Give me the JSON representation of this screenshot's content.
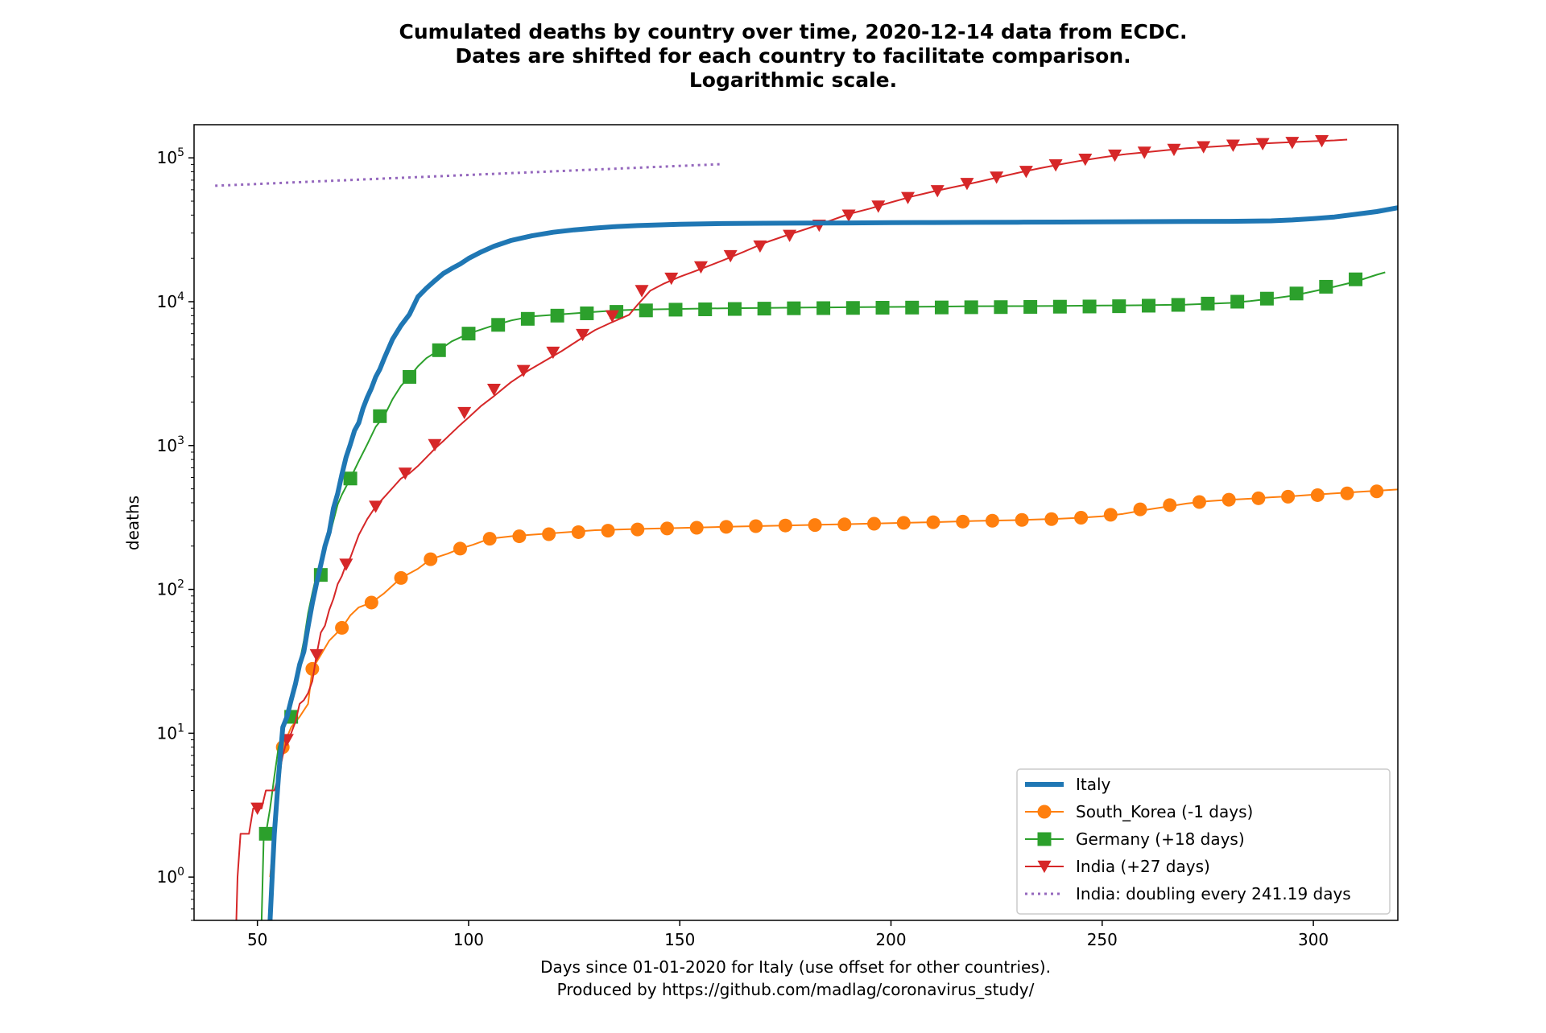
{
  "chart_data": {
    "type": "line",
    "title": [
      "Cumulated deaths by country over time, 2020-12-14 data from ECDC.",
      "Dates are shifted for each country to facilitate comparison.",
      "Logarithmic scale."
    ],
    "xlabel": [
      "Days since 01-01-2020 for Italy (use offset for other countries).",
      "Produced by https://github.com/madlag/coronavirus_study/"
    ],
    "ylabel": "deaths",
    "yscale": "log",
    "xlim": [
      35,
      320
    ],
    "ylim": [
      0.5,
      170000
    ],
    "xticks": [
      {
        "value": 50,
        "label": "50"
      },
      {
        "value": 100,
        "label": "100"
      },
      {
        "value": 150,
        "label": "150"
      },
      {
        "value": 200,
        "label": "200"
      },
      {
        "value": 250,
        "label": "250"
      },
      {
        "value": 300,
        "label": "300"
      }
    ],
    "yticks": [
      {
        "value": 1,
        "base": "10",
        "exp": "0"
      },
      {
        "value": 10,
        "base": "10",
        "exp": "1"
      },
      {
        "value": 100,
        "base": "10",
        "exp": "2"
      },
      {
        "value": 1000,
        "base": "10",
        "exp": "3"
      },
      {
        "value": 10000,
        "base": "10",
        "exp": "4"
      },
      {
        "value": 100000,
        "base": "10",
        "exp": "5"
      }
    ],
    "legend_position": "lower-right",
    "series": [
      {
        "name": "Italy",
        "color": "#1f77b4",
        "style": "thick-line",
        "marker": "none",
        "x": [
          53,
          53.5,
          54,
          55,
          56,
          57,
          58,
          59,
          60,
          61,
          62,
          63,
          64,
          65,
          66,
          67,
          68,
          69,
          70,
          71,
          72,
          73,
          74,
          75,
          76,
          77,
          78,
          79,
          80,
          82,
          84,
          86,
          88,
          90,
          92,
          94,
          96,
          98,
          100,
          103,
          106,
          110,
          115,
          120,
          125,
          130,
          135,
          140,
          150,
          160,
          170,
          180,
          190,
          200,
          210,
          220,
          230,
          240,
          250,
          260,
          270,
          280,
          290,
          295,
          300,
          305,
          310,
          315,
          320
        ],
        "y": [
          0.5,
          1,
          2,
          5,
          11,
          13,
          17,
          22,
          30,
          37,
          55,
          80,
          110,
          148,
          200,
          250,
          366,
          465,
          630,
          830,
          1020,
          1270,
          1440,
          1810,
          2160,
          2500,
          3000,
          3400,
          4030,
          5480,
          6820,
          8160,
          10800,
          12400,
          14000,
          15700,
          17000,
          18300,
          20000,
          22200,
          24300,
          26600,
          28700,
          30400,
          31600,
          32500,
          33300,
          33800,
          34500,
          34900,
          35100,
          35200,
          35300,
          35400,
          35500,
          35600,
          35700,
          35800,
          35900,
          36000,
          36100,
          36200,
          36500,
          37000,
          37800,
          38800,
          40500,
          42300,
          45000
        ]
      },
      {
        "name": "South_Korea (-1 days)",
        "color": "#ff7f0e",
        "style": "line",
        "marker": "circle",
        "x": [
          53,
          54,
          56,
          58,
          60,
          62,
          63,
          65,
          67,
          70,
          72,
          74,
          77,
          80,
          84,
          88,
          91,
          95,
          98,
          101,
          105,
          110,
          115,
          120,
          130,
          140,
          150,
          160,
          170,
          180,
          190,
          200,
          210,
          220,
          230,
          240,
          245,
          250,
          255,
          260,
          265,
          270,
          275,
          280,
          285,
          290,
          295,
          300,
          305,
          310,
          315,
          320
        ],
        "y": [
          1,
          2,
          8,
          11,
          13,
          16,
          28,
          35,
          44,
          54,
          66,
          75,
          81,
          94,
          120,
          139,
          162,
          177,
          192,
          204,
          225,
          234,
          240,
          246,
          258,
          263,
          267,
          272,
          276,
          280,
          284,
          289,
          293,
          299,
          303,
          310,
          315,
          322,
          335,
          356,
          375,
          395,
          410,
          420,
          427,
          437,
          445,
          455,
          465,
          475,
          485,
          495
        ],
        "markers_x": [
          56,
          63,
          70,
          77,
          84,
          91,
          98,
          105,
          112,
          119,
          126,
          133,
          140,
          147,
          154,
          161,
          168,
          175,
          182,
          189,
          196,
          203,
          210,
          217,
          224,
          231,
          238,
          245,
          252,
          259,
          266,
          273,
          280,
          287,
          294,
          301,
          308,
          315
        ],
        "markers_y": [
          8,
          28,
          54,
          81,
          120,
          162,
          192,
          225,
          234,
          242,
          250,
          256,
          261,
          265,
          268,
          272,
          275,
          278,
          280,
          283,
          286,
          290,
          293,
          296,
          300,
          304,
          308,
          315,
          330,
          360,
          385,
          405,
          420,
          430,
          441,
          452,
          465,
          480
        ]
      },
      {
        "name": "Germany (+18 days)",
        "color": "#2ca02c",
        "style": "line",
        "marker": "square",
        "x": [
          51,
          51.5,
          52,
          53,
          54,
          55,
          56,
          57,
          58,
          59,
          60,
          61,
          62,
          63,
          64,
          65,
          66,
          67,
          68,
          69,
          70,
          72,
          74,
          76,
          78,
          80,
          82,
          84,
          86,
          88,
          90,
          93,
          96,
          100,
          105,
          110,
          115,
          120,
          125,
          130,
          135,
          140,
          150,
          160,
          170,
          180,
          190,
          200,
          210,
          220,
          230,
          240,
          250,
          260,
          270,
          280,
          285,
          290,
          295,
          300,
          305,
          310,
          315,
          317
        ],
        "y": [
          0.5,
          2,
          2,
          3,
          5,
          8,
          10,
          13,
          17,
          24,
          31,
          44,
          68,
          94,
          126,
          150,
          190,
          230,
          300,
          390,
          455,
          590,
          780,
          1020,
          1350,
          1600,
          2100,
          2600,
          3000,
          3550,
          4050,
          4600,
          5300,
          6000,
          6700,
          7400,
          7900,
          8100,
          8300,
          8500,
          8700,
          8800,
          8900,
          9000,
          9050,
          9100,
          9150,
          9200,
          9250,
          9300,
          9320,
          9350,
          9400,
          9450,
          9550,
          9800,
          10100,
          10500,
          11000,
          11800,
          12700,
          13800,
          15400,
          16000
        ],
        "markers_x": [
          52,
          58,
          65,
          72,
          79,
          86,
          93,
          100,
          107,
          114,
          121,
          128,
          135,
          142,
          149,
          156,
          163,
          170,
          177,
          184,
          191,
          198,
          205,
          212,
          219,
          226,
          233,
          240,
          247,
          254,
          261,
          268,
          275,
          282,
          289,
          296,
          303,
          310
        ],
        "markers_y": [
          2,
          13,
          126,
          590,
          1600,
          3000,
          4600,
          6000,
          6900,
          7600,
          8000,
          8300,
          8500,
          8700,
          8800,
          8850,
          8900,
          8950,
          9000,
          9020,
          9050,
          9080,
          9100,
          9120,
          9150,
          9170,
          9200,
          9230,
          9260,
          9300,
          9380,
          9500,
          9700,
          10000,
          10500,
          11400,
          12700,
          14300
        ]
      },
      {
        "name": "India (+27 days)",
        "color": "#d62728",
        "style": "line",
        "marker": "triangle-down",
        "x": [
          45,
          45.3,
          46,
          48,
          49,
          50,
          51,
          52,
          53,
          54,
          55,
          56,
          57,
          58,
          59,
          60,
          61,
          62,
          63,
          64,
          65,
          66,
          67,
          68,
          69,
          70,
          71,
          72,
          74,
          76,
          78,
          80,
          82,
          84,
          86,
          88,
          90,
          92,
          94,
          96,
          98,
          100,
          103,
          106,
          110,
          114,
          118,
          122,
          126,
          130,
          134,
          138,
          140,
          143,
          146,
          150,
          155,
          160,
          165,
          170,
          175,
          180,
          185,
          190,
          195,
          200,
          205,
          210,
          215,
          220,
          225,
          230,
          235,
          240,
          245,
          250,
          255,
          260,
          265,
          270,
          275,
          280,
          285,
          290,
          295,
          300,
          305,
          308
        ],
        "y": [
          0.5,
          1,
          2,
          2,
          3,
          3,
          3,
          4,
          4,
          4,
          5,
          7,
          9,
          10,
          12,
          16,
          17,
          19,
          23,
          35,
          50,
          56,
          72,
          86,
          109,
          124,
          149,
          166,
          239,
          308,
          377,
          437,
          507,
          590,
          640,
          720,
          826,
          950,
          1075,
          1223,
          1390,
          1568,
          1890,
          2206,
          2752,
          3303,
          3868,
          4531,
          5394,
          6363,
          7207,
          8107,
          9520,
          11919,
          13254,
          14894,
          16893,
          19268,
          22123,
          25602,
          28732,
          32063,
          36000,
          40699,
          44386,
          49036,
          53866,
          58390,
          62713,
          67376,
          72775,
          78586,
          84372,
          90020,
          95542,
          100842,
          105526,
          109150,
          112998,
          116616,
          119014,
          121641,
          124315,
          126611,
          128668,
          130519,
          132162,
          134000
        ],
        "markers_x": [
          50,
          57,
          64,
          71,
          78,
          85,
          92,
          99,
          106,
          113,
          120,
          127,
          134,
          141,
          148,
          155,
          162,
          169,
          176,
          183,
          190,
          197,
          204,
          211,
          218,
          225,
          232,
          239,
          246,
          253,
          260,
          267,
          274,
          281,
          288,
          295,
          302
        ],
        "markers_y": [
          3,
          9,
          35,
          149,
          377,
          640,
          1010,
          1690,
          2450,
          3310,
          4440,
          5890,
          7940,
          11900,
          14500,
          17400,
          20800,
          24300,
          28800,
          33900,
          39800,
          46000,
          52800,
          58900,
          66100,
          73200,
          80200,
          89000,
          97500,
          104000,
          109000,
          114000,
          119000,
          122000,
          125000,
          127500,
          131000
        ]
      },
      {
        "name": "India: doubling every 241.19 days",
        "color": "#9467bd",
        "style": "dotted",
        "marker": "none",
        "x": [
          40,
          160
        ],
        "y": [
          64000,
          90400
        ]
      }
    ]
  }
}
